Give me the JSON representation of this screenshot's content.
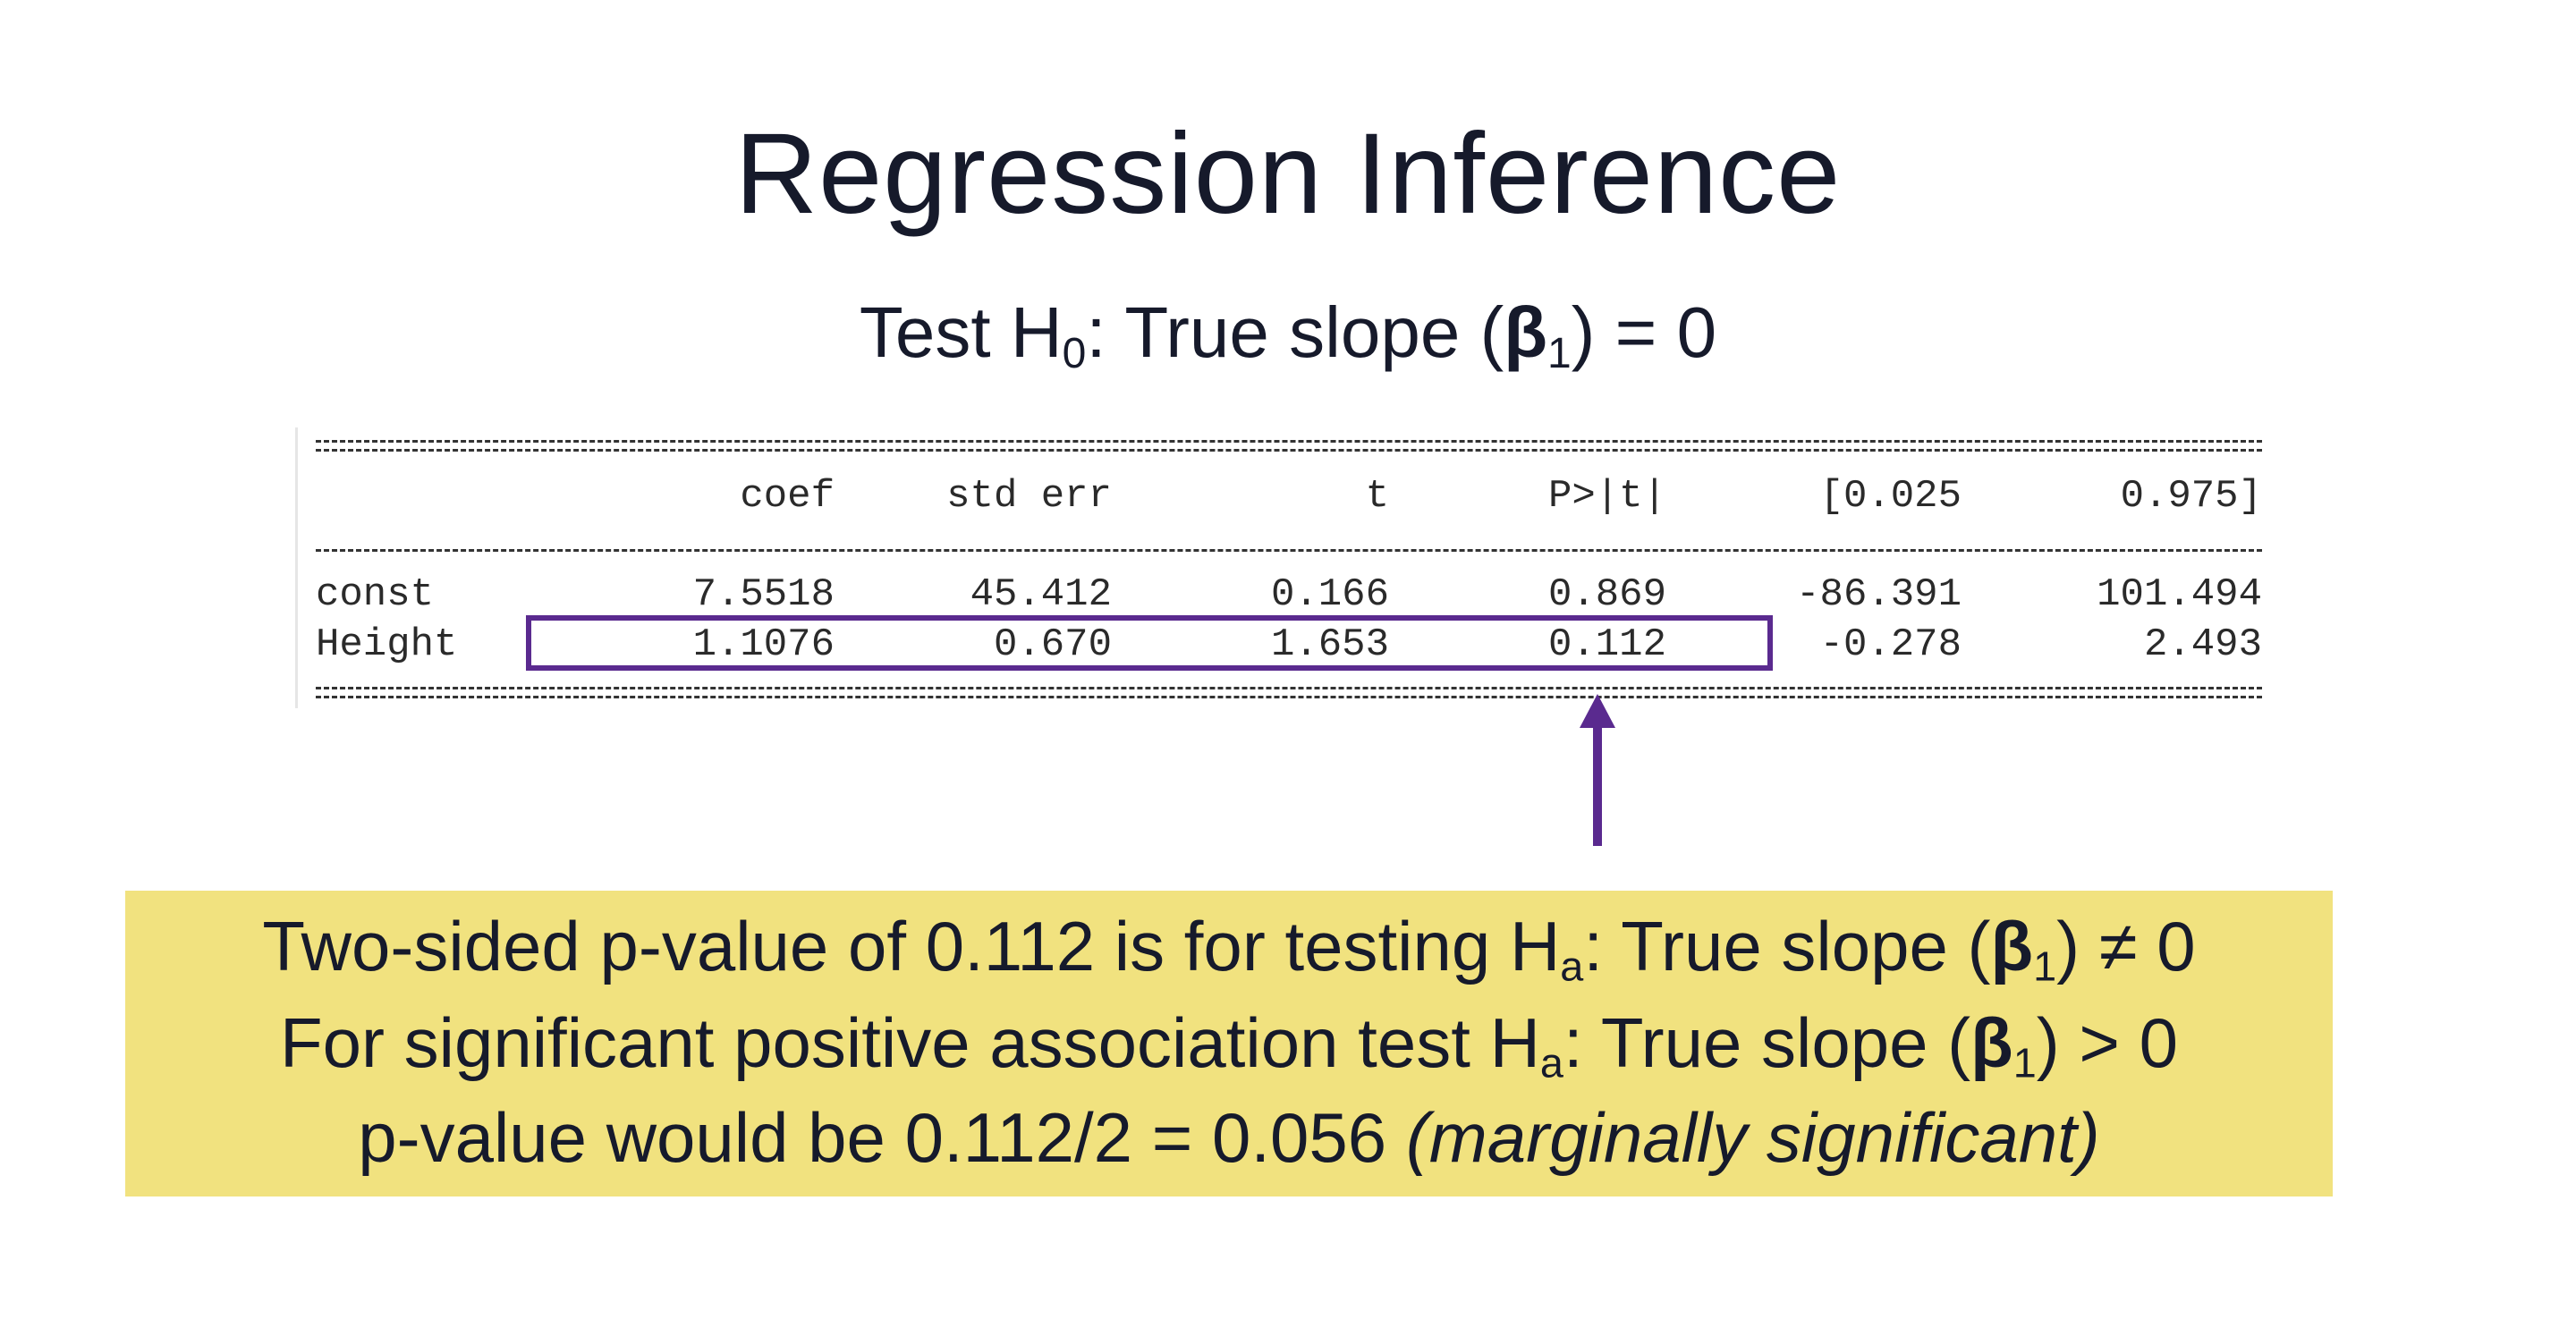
{
  "slide": {
    "title": "Regression Inference",
    "subtitle": {
      "prefix": "Test H",
      "sub": "0",
      "mid": ": True slope (",
      "beta": "β",
      "beta_sub": "1",
      "suffix": ") = 0"
    }
  },
  "table": {
    "columns": [
      "coef",
      "std err",
      "t",
      "P>|t|",
      "[0.025",
      "0.975]"
    ],
    "rows": [
      {
        "label": "const",
        "values": [
          "7.5518",
          "45.412",
          "0.166",
          "0.869",
          "-86.391",
          "101.494"
        ]
      },
      {
        "label": "Height",
        "values": [
          "1.1076",
          "0.670",
          "1.653",
          "0.112",
          "-0.278",
          "2.493"
        ]
      }
    ]
  },
  "note": {
    "line1": {
      "text": "Two-sided p-value of 0.112 is for testing H",
      "sub": "a",
      "mid": ": True slope (",
      "beta": "β",
      "beta_sub": "1",
      "suffix": ") ≠ 0"
    },
    "line2": {
      "text": "For significant positive association test H",
      "sub": "a",
      "mid": ": True slope (",
      "beta": "β",
      "beta_sub": "1",
      "suffix": ") > 0"
    },
    "line3": {
      "text": "p-value would be 0.112/2 = 0.056 ",
      "italic": "(marginally significant)"
    }
  },
  "colors": {
    "highlight_box": "#5a2a8f",
    "note_background": "#f1e27f",
    "text": "#161a2b"
  }
}
